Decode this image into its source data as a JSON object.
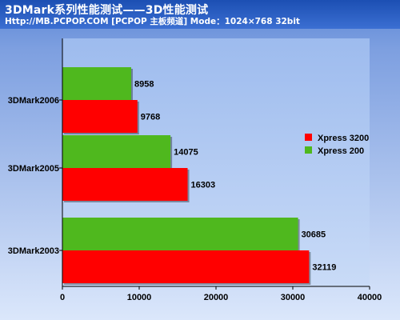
{
  "header": {
    "title": "3DMark系列性能测试——3D性能测试",
    "subtitle": "Http://MB.PCPOP.COM [PCPOP 主板频道]  Mode：1024×768 32bit"
  },
  "colors": {
    "Xpress 3200": "#ff0000",
    "Xpress 200": "#4fb81e",
    "header_bg": "#1c4fb3",
    "plot_bg": "#aec6f0"
  },
  "chart_data": {
    "type": "bar",
    "orientation": "horizontal",
    "categories": [
      "3DMark2006",
      "3DMark2005",
      "3DMark2003"
    ],
    "series": [
      {
        "name": "Xpress 200",
        "values": [
          8958,
          14075,
          30685
        ]
      },
      {
        "name": "Xpress 3200",
        "values": [
          9768,
          16303,
          32119
        ]
      }
    ],
    "xlim": [
      0,
      40000
    ],
    "x_ticks": [
      0,
      10000,
      20000,
      30000,
      40000
    ],
    "x_tick_labels": [
      "0",
      "10000",
      "20000",
      "30000",
      "40000"
    ],
    "legend": {
      "position": "right",
      "entries": [
        "Xpress 3200",
        "Xpress 200"
      ]
    },
    "grid": false
  }
}
